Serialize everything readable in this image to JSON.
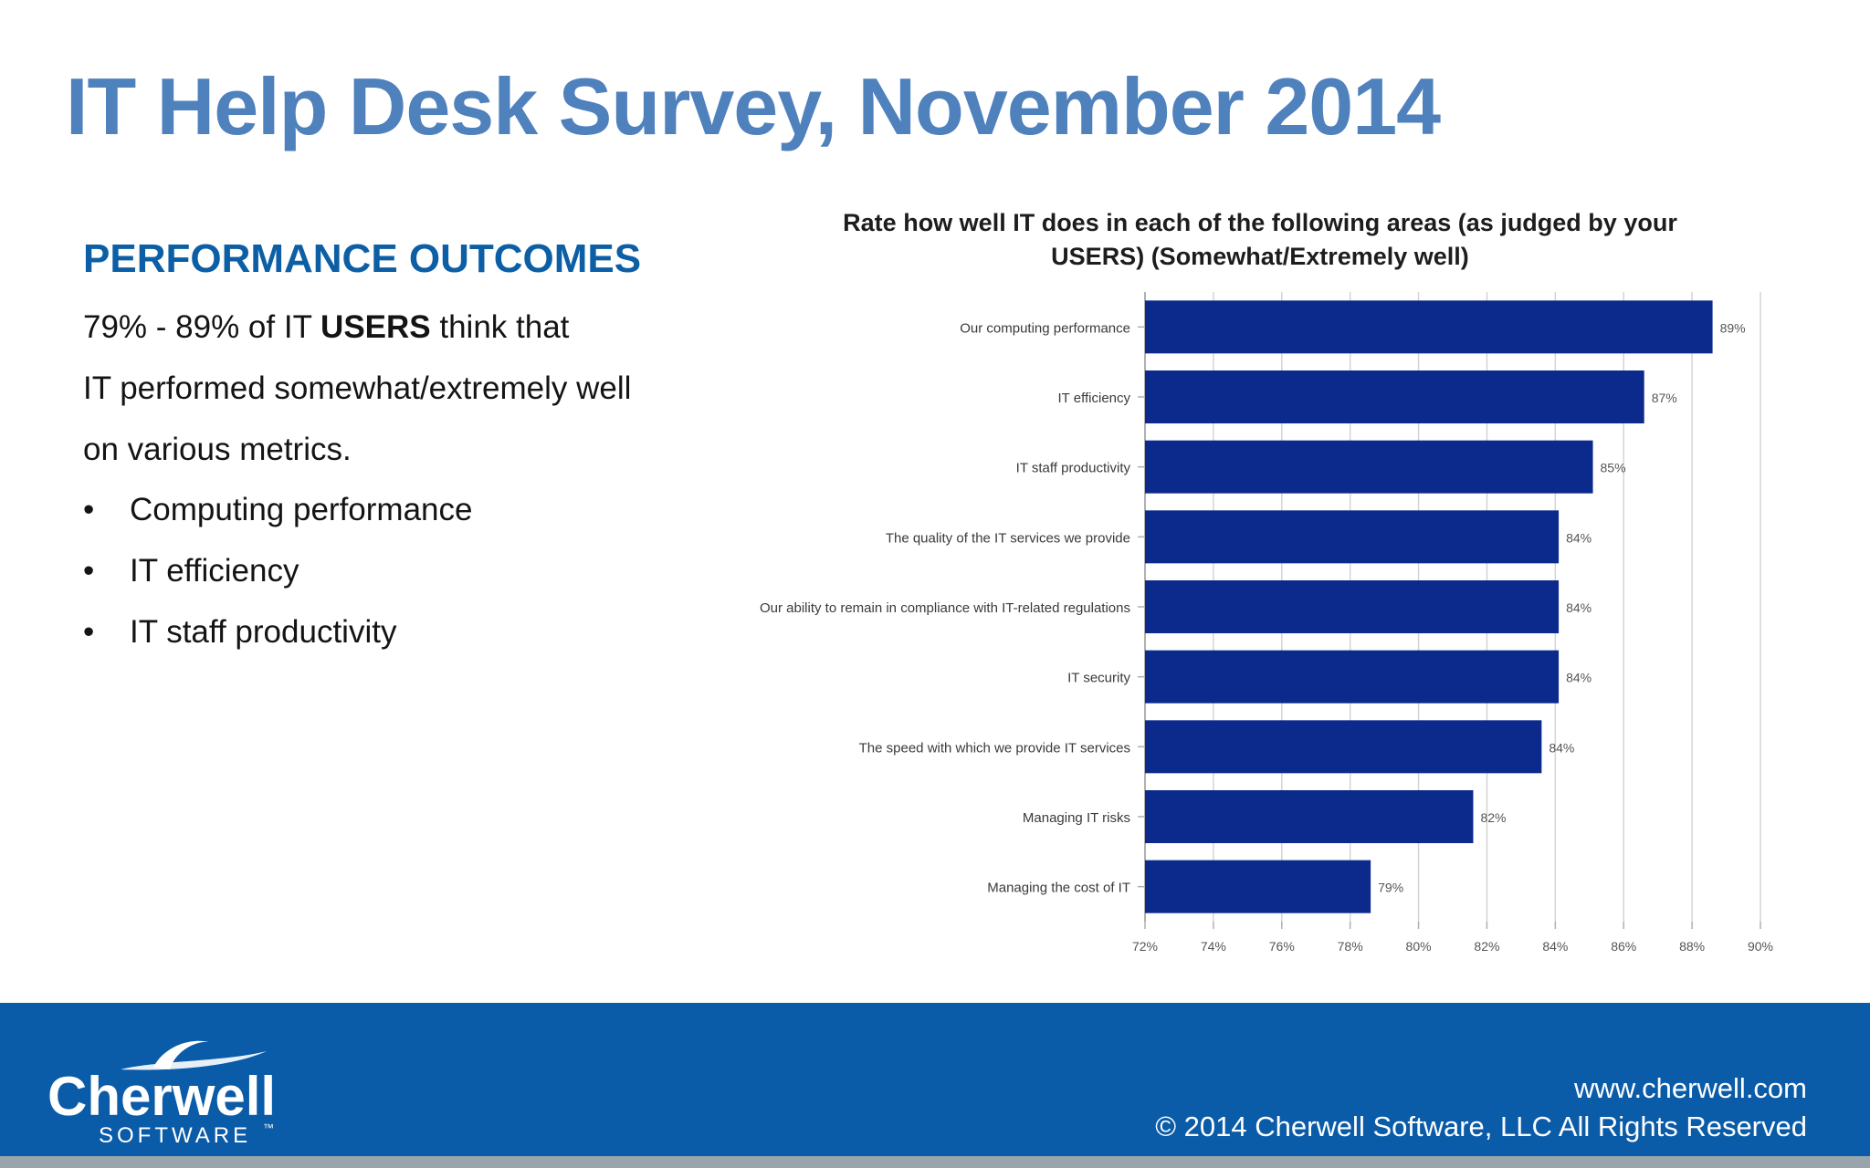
{
  "colors": {
    "title": "#4f81bd",
    "heading": "#0d5fa5",
    "bar": "#0b2a8c",
    "footer": "#0a5ba8"
  },
  "title": "IT Help Desk Survey, November 2014",
  "left_panel": {
    "heading": "PERFORMANCE OUTCOMES",
    "line1_prefix": "79% - 89% of IT ",
    "line1_bold": "USERS",
    "line1_suffix": " think that",
    "line2": "IT performed somewhat/extremely well",
    "line3": "on various metrics.",
    "bullet_glyph": "•",
    "bullets": [
      "Computing performance",
      "IT efficiency",
      "IT staff productivity"
    ]
  },
  "chart_data": {
    "type": "bar",
    "orientation": "horizontal",
    "title_line1": "Rate how well IT does in each of the following areas (as judged by your",
    "title_line2": "USERS) (Somewhat/Extremely well)",
    "categories": [
      "Our computing performance",
      "IT efficiency",
      "IT staff productivity",
      "The quality of the IT services we provide",
      "Our ability to remain in compliance with IT-related regulations",
      "IT security",
      "The speed with which we provide IT services",
      "Managing IT risks",
      "Managing the cost of IT"
    ],
    "values": [
      88.6,
      86.6,
      85.1,
      84.1,
      84.1,
      84.1,
      83.6,
      81.6,
      78.6
    ],
    "value_labels": [
      "89%",
      "87%",
      "85%",
      "84%",
      "84%",
      "84%",
      "84%",
      "82%",
      "79%"
    ],
    "xlim": [
      72,
      90
    ],
    "xticks": [
      72,
      74,
      76,
      78,
      80,
      82,
      84,
      86,
      88,
      90
    ],
    "xtick_labels": [
      "72%",
      "74%",
      "76%",
      "78%",
      "80%",
      "82%",
      "84%",
      "86%",
      "88%",
      "90%"
    ],
    "grid": true
  },
  "footer": {
    "logo_word": "Cherwell",
    "logo_sub": "SOFTWARE",
    "logo_tm": "™",
    "url": "www.cherwell.com",
    "copyright": "© 2014 Cherwell Software, LLC All Rights Reserved"
  }
}
